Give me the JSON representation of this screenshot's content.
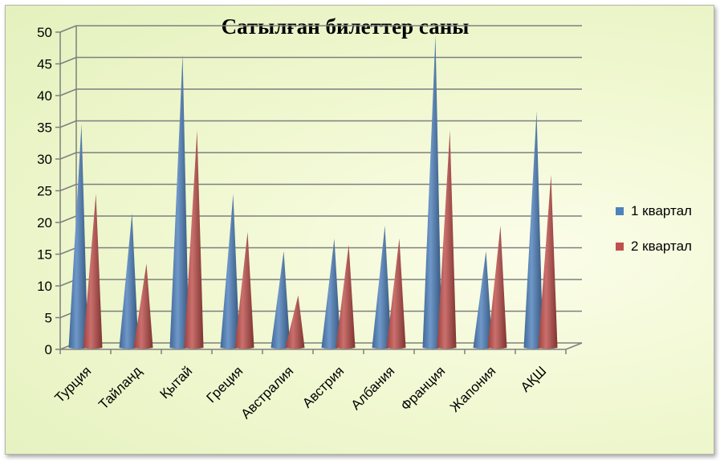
{
  "chart_data": {
    "type": "bar",
    "title": "Сатылған билеттер саны",
    "categories": [
      "Турция",
      "Тайланд",
      "Қытай",
      "Греция",
      "Австралия",
      "Австрия",
      "Албания",
      "Франция",
      "Жапония",
      "АҚШ"
    ],
    "series": [
      {
        "name": "1 квартал",
        "color": "#4f81bd",
        "values": [
          35,
          21,
          46,
          24,
          15,
          17,
          19,
          49,
          15,
          37
        ]
      },
      {
        "name": "2 квартал",
        "color": "#c0504d",
        "values": [
          24,
          13,
          34,
          18,
          8,
          16,
          17,
          34,
          19,
          27
        ]
      }
    ],
    "ylim": [
      0,
      50
    ],
    "yticks": [
      0,
      5,
      10,
      15,
      20,
      25,
      30,
      35,
      40,
      45,
      50
    ],
    "grid": true,
    "legend_position": "right",
    "shape": "cone",
    "background_color": "#eef6cc"
  }
}
